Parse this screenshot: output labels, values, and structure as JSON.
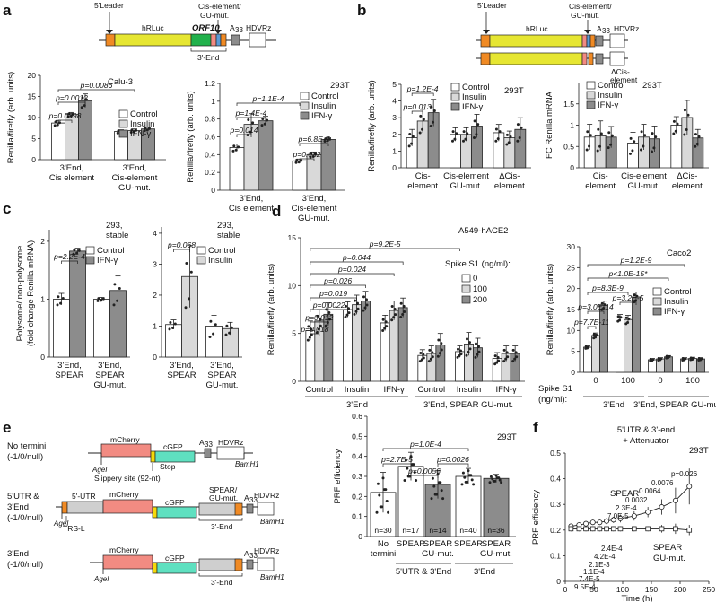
{
  "panel_labels": {
    "a": "a",
    "b": "b",
    "c": "c",
    "d": "d",
    "e": "e",
    "f": "f"
  },
  "colors": {
    "control": "#ffffff",
    "insulin": "#d9d9d9",
    "ifng": "#8c8c8c",
    "leader": "#f08a24",
    "hrluc": "#e6e632",
    "orf10": "#22b14c",
    "mcherry": "#f28b82",
    "cgfp": "#5fe0c0",
    "spear": "#cfcfcf",
    "a33": "#8c8c8c",
    "blue": "#5b9bd5",
    "slippery": "#f5d90a"
  },
  "legend": {
    "control": "Control",
    "insulin": "Insulin",
    "ifng": "IFN-γ",
    "spike_title": "Spike S1 (ng/ml):",
    "spike_levels": [
      "0",
      "100",
      "200"
    ]
  },
  "constructs": {
    "leader": "5'Leader",
    "hrluc": "hRLuc",
    "orf10": "ORF10",
    "cis_top": "Cis-element/",
    "cis_bot": "GU-mut.",
    "a33": "A",
    "a33_sub": "33",
    "hdvrz": "HDVRz",
    "three_end": "3'-End",
    "dcis_top": "ΔCis-",
    "dcis_bot": "element",
    "mcherry": "mCherry",
    "cgfp": "cGFP",
    "agel": "AgeI",
    "bamh1": "BamH1",
    "slippery": "Slippery site (92-nt)",
    "stop": "Stop",
    "five_utr": "5'-UTR",
    "trs": "TRS-L",
    "spear_top": "SPEAR/",
    "spear_bot": "GU-mut.",
    "e_name1a": "No termini",
    "e_name1b": "(-1/0/null)",
    "e_name2a": "5'UTR &",
    "e_name2b": "3'End",
    "e_name2c": "(-1/0/null)",
    "e_name3a": "3'End",
    "e_name3b": "(-1/0/null)"
  },
  "chart_data": [
    {
      "id": "a_calu3",
      "type": "bar",
      "cell_line": "Calu-3",
      "ylabel": "Renilla/firefly (arb. units)",
      "ylim": [
        0,
        20
      ],
      "yticks": [
        0,
        5,
        10,
        15,
        20
      ],
      "categories": [
        [
          "3'End,",
          "Cis element"
        ],
        [
          "3'End,",
          "Cis-element",
          "GU-mut."
        ]
      ],
      "series": [
        {
          "name": "Control",
          "values": [
            8.7,
            6.7
          ],
          "err": [
            0.6,
            0.4
          ]
        },
        {
          "name": "Insulin",
          "values": [
            10.7,
            6.9
          ],
          "err": [
            0.5,
            0.4
          ]
        },
        {
          "name": "IFN-γ",
          "values": [
            14.0,
            7.3
          ],
          "err": [
            1.6,
            0.4
          ]
        }
      ],
      "pvalues": [
        "p=0.0098",
        "p=0.0012",
        "p=0.0086"
      ]
    },
    {
      "id": "a_293t",
      "type": "bar",
      "cell_line": "293T",
      "ylabel": "Renilla/firefly (arb. units)",
      "ylim": [
        0,
        1.2
      ],
      "yticks": [
        0,
        0.2,
        0.4,
        0.6,
        0.8,
        1,
        1.2
      ],
      "categories": [
        [
          "3'End,",
          "Cis element"
        ],
        [
          "3'End,",
          "Cis-element",
          "GU-mut."
        ]
      ],
      "series": [
        {
          "name": "Control",
          "values": [
            0.48,
            0.33
          ],
          "err": [
            0.04,
            0.02
          ]
        },
        {
          "name": "Insulin",
          "values": [
            0.74,
            0.4
          ],
          "err": [
            0.12,
            0.03
          ]
        },
        {
          "name": "IFN-γ",
          "values": [
            0.78,
            0.57
          ],
          "err": [
            0.05,
            0.02
          ]
        }
      ],
      "pvalues": [
        "p=0.014",
        "p=1.4E-4",
        "p=1.1E-4",
        "p=0.032",
        "p=6.8E-7"
      ]
    },
    {
      "id": "b_renilla",
      "type": "bar",
      "cell_line": "293T",
      "ylabel": "Renilla/firefly (arb. units)",
      "ylim": [
        0,
        5
      ],
      "yticks": [
        0,
        1,
        2,
        3,
        4,
        5
      ],
      "categories": [
        [
          "Cis-",
          "element"
        ],
        [
          "Cis-element",
          "GU-mut."
        ],
        [
          "ΔCis-",
          "element"
        ]
      ],
      "series": [
        {
          "name": "Control",
          "values": [
            1.8,
            2.0,
            2.1
          ],
          "err": [
            0.5,
            0.4,
            0.5
          ]
        },
        {
          "name": "Insulin",
          "values": [
            2.8,
            2.0,
            1.8
          ],
          "err": [
            0.7,
            0.4,
            0.4
          ]
        },
        {
          "name": "IFN-γ",
          "values": [
            3.3,
            2.5,
            2.3
          ],
          "err": [
            0.8,
            0.7,
            0.7
          ]
        }
      ],
      "pvalues": [
        "p=0.013",
        "p=1.2E-4"
      ]
    },
    {
      "id": "b_fc",
      "type": "bar",
      "cell_line": "293T",
      "ylabel": "FC Renilla mRNA",
      "ylim": [
        0,
        2.0
      ],
      "yticks": [
        0,
        0.5,
        1,
        1.5
      ],
      "categories": [
        [
          "Cis-",
          "element"
        ],
        [
          "Cis-element",
          "GU-mut."
        ],
        [
          "ΔCis-",
          "element"
        ]
      ],
      "series": [
        {
          "name": "Control",
          "values": [
            0.72,
            0.58,
            1.0
          ],
          "err": [
            0.3,
            0.25,
            0.2
          ]
        },
        {
          "name": "Insulin",
          "values": [
            0.75,
            0.72,
            1.18
          ],
          "err": [
            0.35,
            0.3,
            0.4
          ]
        },
        {
          "name": "IFN-γ",
          "values": [
            0.72,
            0.68,
            0.7
          ],
          "err": [
            0.25,
            0.3,
            0.2
          ]
        }
      ]
    },
    {
      "id": "c_ifng",
      "type": "bar",
      "cell_line": "293, stable",
      "ylabel": "Polysome/ non-polysome (fold-change Renilla mRNA)",
      "ylim": [
        0,
        2.2
      ],
      "yticks": [
        0,
        1,
        2
      ],
      "categories": [
        [
          "3'End,",
          "SPEAR"
        ],
        [
          "3'End,",
          "SPEAR",
          "GU-mut."
        ]
      ],
      "series": [
        {
          "name": "Control",
          "values": [
            1.0,
            1.0
          ],
          "err": [
            0.1,
            0.03
          ]
        },
        {
          "name": "IFN-γ",
          "values": [
            1.83,
            1.15
          ],
          "err": [
            0.05,
            0.25
          ]
        }
      ],
      "pvalues": [
        "p=2.2E-4"
      ]
    },
    {
      "id": "c_insulin",
      "type": "bar",
      "cell_line": "293, stable",
      "ylim": [
        0,
        4.2
      ],
      "yticks": [
        0,
        1,
        2,
        3,
        4
      ],
      "categories": [
        [
          "3'End,",
          "SPEAR"
        ],
        [
          "3'End,",
          "SPEAR",
          "GU-mut."
        ]
      ],
      "series": [
        {
          "name": "Control",
          "values": [
            1.05,
            1.0
          ],
          "err": [
            0.15,
            0.35
          ]
        },
        {
          "name": "Insulin",
          "values": [
            2.6,
            0.92
          ],
          "err": [
            1.0,
            0.2
          ]
        }
      ],
      "pvalues": [
        "p=0.068"
      ]
    },
    {
      "id": "d_a549",
      "type": "bar",
      "cell_line": "A549-hACE2",
      "ylabel": "Renilla/firefly (arb. units)",
      "ylim": [
        0,
        15
      ],
      "yticks": [
        0,
        5,
        10,
        15
      ],
      "categories": [
        "Control",
        "Insulin",
        "IFN-γ",
        "Control",
        "Insulin",
        "IFN-γ"
      ],
      "groups": [
        "3'End",
        "3'End, SPEAR GU-mut."
      ],
      "series": [
        {
          "name": "0",
          "values": [
            5.3,
            7.5,
            6.1,
            2.7,
            3.1,
            2.4
          ],
          "err": [
            1.0,
            0.8,
            0.8,
            0.6,
            0.6,
            0.6
          ]
        },
        {
          "name": "100",
          "values": [
            6.3,
            8.0,
            7.4,
            2.9,
            3.9,
            2.9
          ],
          "err": [
            1.2,
            1.0,
            1.0,
            0.8,
            1.2,
            0.8
          ]
        },
        {
          "name": "200",
          "values": [
            7.0,
            8.4,
            7.7,
            3.8,
            3.5,
            2.9
          ],
          "err": [
            1.2,
            1.0,
            1.0,
            1.2,
            1.0,
            0.8
          ]
        }
      ],
      "pvalues": [
        "p=0.018",
        "p=0.012",
        "p=0.0022",
        "p=0.024",
        "p=0.026",
        "p=0.019",
        "p=0.044",
        "p=9.2E-5"
      ]
    },
    {
      "id": "d_caco2",
      "type": "bar",
      "cell_line": "Caco2",
      "ylabel": "Renilla/firefly (arb. units)",
      "ylim": [
        0,
        30
      ],
      "yticks": [
        0,
        5,
        10,
        15,
        20,
        25,
        30
      ],
      "xlabel": "Spike S1 (ng/ml):",
      "categories": [
        "0",
        "100",
        "0",
        "100"
      ],
      "groups": [
        "3'End",
        "3'End, SPEAR GU-mut."
      ],
      "series": [
        {
          "name": "Control",
          "values": [
            6.0,
            13.0,
            3.0,
            3.2
          ],
          "err": [
            0.3,
            0.8,
            0.3,
            0.3
          ]
        },
        {
          "name": "Insulin",
          "values": [
            8.8,
            12.6,
            3.2,
            3.3
          ],
          "err": [
            0.6,
            1.0,
            0.3,
            0.3
          ]
        },
        {
          "name": "IFN-γ",
          "values": [
            16.0,
            18.0,
            3.7,
            3.2
          ],
          "err": [
            1.0,
            1.2,
            0.3,
            0.3
          ]
        }
      ],
      "pvalues": [
        "p=7.7E-11",
        "p=3.0E-14",
        "p=8.3E-9",
        "p=3.2E-5",
        "p<1.0E-15*",
        "p=1.2E-9"
      ]
    },
    {
      "id": "e_prf",
      "type": "bar",
      "cell_line": "293T",
      "ylabel": "PRF efficiency",
      "ylim": [
        0,
        0.6
      ],
      "yticks": [
        0,
        0.1,
        0.2,
        0.3,
        0.4,
        0.5,
        0.6
      ],
      "categories": [
        [
          "No",
          "termini"
        ],
        [
          "SPEAR"
        ],
        [
          "SPEAR",
          "GU-mut."
        ],
        [
          "SPEAR"
        ],
        [
          "SPEAR",
          "GU-mut."
        ]
      ],
      "groups": [
        "5'UTR & 3'End",
        "3'End"
      ],
      "values": [
        0.22,
        0.35,
        0.26,
        0.3,
        0.29
      ],
      "err": [
        0.1,
        0.07,
        0.07,
        0.04,
        0.02
      ],
      "n": [
        "n=30",
        "n=17",
        "n=14",
        "n=40",
        "n=36"
      ],
      "pvalues": [
        "p=2.7E-5",
        "p=0.0056",
        "p=0.0026",
        "p=1.0E-4"
      ]
    },
    {
      "id": "f_time",
      "type": "line",
      "cell_line": "293T",
      "title": "5'UTR & 3'-end + Attenuator",
      "xlabel": "Time (h)",
      "ylabel": "PRF efficiency",
      "xlim": [
        0,
        250
      ],
      "ylim": [
        0,
        0.5
      ],
      "xticks": [
        0,
        50,
        100,
        150,
        200,
        250
      ],
      "yticks": [
        0,
        0.1,
        0.2,
        0.3,
        0.4,
        0.5
      ],
      "x": [
        10,
        24,
        36,
        48,
        60,
        72,
        84,
        96,
        120,
        144,
        168,
        192,
        216
      ],
      "series": [
        {
          "name": "SPEAR",
          "values": [
            0.215,
            0.22,
            0.225,
            0.23,
            0.23,
            0.235,
            0.24,
            0.245,
            0.255,
            0.27,
            0.29,
            0.315,
            0.37
          ],
          "err": [
            0.01,
            0.01,
            0.01,
            0.01,
            0.01,
            0.012,
            0.012,
            0.015,
            0.018,
            0.02,
            0.03,
            0.05,
            0.07
          ]
        },
        {
          "name": "SPEAR GU-mut.",
          "values": [
            0.205,
            0.205,
            0.205,
            0.205,
            0.205,
            0.205,
            0.205,
            0.205,
            0.205,
            0.205,
            0.205,
            0.205,
            0.2
          ],
          "err": [
            0.01,
            0.01,
            0.01,
            0.01,
            0.01,
            0.01,
            0.01,
            0.01,
            0.01,
            0.01,
            0.015,
            0.02,
            0.02
          ]
        }
      ],
      "pvalues": [
        "9.5E-4",
        "7.4E-5",
        "1.1E-4",
        "2.1E-3",
        "4.2E-4",
        "2.4E-4",
        "7.0E-5",
        "2.3E-4",
        "0.0032",
        "0.0064",
        "0.0076",
        "p=0.026"
      ]
    }
  ]
}
